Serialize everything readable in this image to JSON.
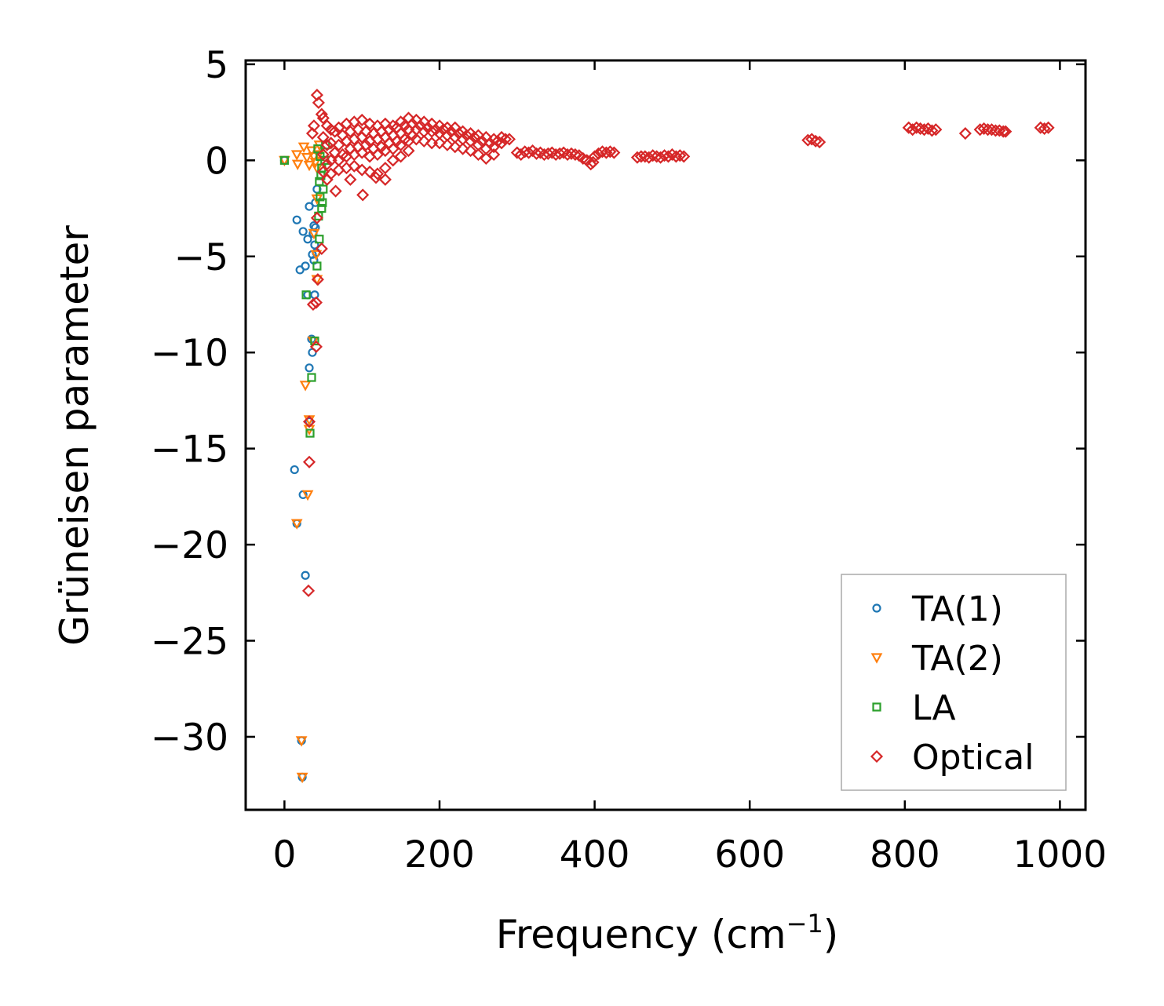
{
  "chart_data": {
    "type": "scatter",
    "title": "",
    "xlabel": "Frequency (cm",
    "xlabel_sup": "−1",
    "xlabel_end": ")",
    "ylabel": "Grüneisen parameter",
    "xlim": [
      -50,
      1033
    ],
    "ylim": [
      -33.8,
      5.2
    ],
    "xticks": [
      0,
      200,
      400,
      600,
      800,
      1000
    ],
    "xtick_labels": [
      "0",
      "200",
      "400",
      "600",
      "800",
      "1000"
    ],
    "yticks": [
      5,
      0,
      -5,
      -10,
      -15,
      -20,
      -25,
      -30
    ],
    "ytick_labels": [
      "5",
      "0",
      "−5",
      "−10",
      "−15",
      "−20",
      "−25",
      "−30"
    ],
    "grid": false,
    "legend_position": "bottom-right",
    "series": [
      {
        "name": "TA(1)",
        "marker": "circle",
        "color": "#1f77b4",
        "points": [
          [
            0,
            0
          ],
          [
            16,
            -3.1
          ],
          [
            24,
            -3.7
          ],
          [
            32,
            -2.4
          ],
          [
            30,
            -4.1
          ],
          [
            20,
            -5.7
          ],
          [
            27,
            -5.5
          ],
          [
            36,
            -4.9
          ],
          [
            38,
            -3.4
          ],
          [
            42,
            -1.5
          ],
          [
            40,
            -2.2
          ],
          [
            40,
            -3.5
          ],
          [
            38,
            -5.2
          ],
          [
            41,
            -4.8
          ],
          [
            37,
            -3.8
          ],
          [
            39,
            -4.4
          ],
          [
            30,
            -7.0
          ],
          [
            39,
            -7.0
          ],
          [
            35,
            -9.3
          ],
          [
            36,
            -10.0
          ],
          [
            32,
            -10.8
          ],
          [
            32,
            -13.6
          ],
          [
            13,
            -16.1
          ],
          [
            24,
            -17.4
          ],
          [
            16,
            -18.9
          ],
          [
            27,
            -21.6
          ],
          [
            22,
            -30.2
          ],
          [
            23,
            -32.1
          ]
        ]
      },
      {
        "name": "TA(2)",
        "marker": "triangle_down",
        "color": "#ff7f0e",
        "points": [
          [
            0,
            0
          ],
          [
            16,
            0.3
          ],
          [
            17,
            -0.2
          ],
          [
            25,
            0.7
          ],
          [
            29,
            0.15
          ],
          [
            32,
            -0.25
          ],
          [
            38,
            0.2
          ],
          [
            42,
            -0.4
          ],
          [
            45,
            0.8
          ],
          [
            35,
            0.5
          ],
          [
            40,
            -0.1
          ],
          [
            44,
            0.3
          ],
          [
            42,
            -2.0
          ],
          [
            38,
            -3.8
          ],
          [
            41,
            -4.9
          ],
          [
            42,
            -6.2
          ],
          [
            37,
            -9.4
          ],
          [
            27,
            -11.7
          ],
          [
            32,
            -13.5
          ],
          [
            32,
            -14.0
          ],
          [
            30,
            -17.4
          ],
          [
            16,
            -18.9
          ],
          [
            22,
            -30.2
          ],
          [
            23,
            -32.1
          ]
        ]
      },
      {
        "name": "LA",
        "marker": "square",
        "color": "#2ca02c",
        "points": [
          [
            0,
            0
          ],
          [
            43,
            0.6
          ],
          [
            46,
            0.2
          ],
          [
            48,
            -0.4
          ],
          [
            45,
            -1.1
          ],
          [
            46,
            -1.9
          ],
          [
            48,
            -2.5
          ],
          [
            44,
            -2.9
          ],
          [
            50,
            -1.5
          ],
          [
            52,
            0
          ],
          [
            53,
            0.8
          ],
          [
            47,
            -0.8
          ],
          [
            49,
            -2.2
          ],
          [
            45,
            -4.1
          ],
          [
            42,
            -5.5
          ],
          [
            28,
            -7.0
          ],
          [
            39,
            -9.4
          ],
          [
            35,
            -11.3
          ],
          [
            33,
            -14.2
          ]
        ]
      },
      {
        "name": "Optical",
        "marker": "diamond",
        "color": "#d62728",
        "points": [
          [
            42,
            3.4
          ],
          [
            44,
            3.0
          ],
          [
            48,
            2.4
          ],
          [
            38,
            1.8
          ],
          [
            36,
            1.4
          ],
          [
            42,
            -3.0
          ],
          [
            48,
            -4.6
          ],
          [
            43,
            -6.2
          ],
          [
            37,
            -7.5
          ],
          [
            41,
            -7.4
          ],
          [
            41,
            -9.7
          ],
          [
            32,
            -13.6
          ],
          [
            32,
            -15.7
          ],
          [
            31,
            -22.4
          ],
          [
            66,
            -1.6
          ],
          [
            85,
            -1.0
          ],
          [
            101,
            -1.8
          ],
          [
            118,
            -0.9
          ],
          [
            130,
            -1.0
          ],
          [
            50,
            2.2
          ],
          [
            50,
            1.2
          ],
          [
            50,
            0.3
          ],
          [
            50,
            -0.6
          ],
          [
            55,
            1.8
          ],
          [
            55,
            0.8
          ],
          [
            55,
            -0.2
          ],
          [
            55,
            -1.0
          ],
          [
            60,
            1.6
          ],
          [
            60,
            0.9
          ],
          [
            60,
            0
          ],
          [
            60,
            -0.7
          ],
          [
            65,
            1.5
          ],
          [
            65,
            0.4
          ],
          [
            70,
            1.7
          ],
          [
            70,
            0.8
          ],
          [
            70,
            0
          ],
          [
            70,
            -0.5
          ],
          [
            75,
            1.3
          ],
          [
            75,
            0.3
          ],
          [
            80,
            1.9
          ],
          [
            80,
            1.0
          ],
          [
            80,
            0.2
          ],
          [
            80,
            -0.4
          ],
          [
            85,
            1.5
          ],
          [
            85,
            0.6
          ],
          [
            90,
            2.0
          ],
          [
            90,
            1.1
          ],
          [
            90,
            0.3
          ],
          [
            90,
            -0.3
          ],
          [
            95,
            1.6
          ],
          [
            95,
            0.7
          ],
          [
            100,
            2.1
          ],
          [
            100,
            1.2
          ],
          [
            100,
            0.4
          ],
          [
            100,
            -0.5
          ],
          [
            105,
            1.5
          ],
          [
            105,
            0.8
          ],
          [
            110,
            1.9
          ],
          [
            110,
            1.0
          ],
          [
            110,
            0.2
          ],
          [
            110,
            -0.6
          ],
          [
            115,
            1.4
          ],
          [
            115,
            0.6
          ],
          [
            120,
            1.8
          ],
          [
            120,
            1.1
          ],
          [
            120,
            0.3
          ],
          [
            120,
            -0.7
          ],
          [
            125,
            1.5
          ],
          [
            125,
            0.7
          ],
          [
            130,
            1.9
          ],
          [
            130,
            1.2
          ],
          [
            130,
            0.5
          ],
          [
            130,
            -0.4
          ],
          [
            135,
            1.6
          ],
          [
            135,
            0.9
          ],
          [
            140,
            1.8
          ],
          [
            140,
            1.3
          ],
          [
            140,
            0.6
          ],
          [
            140,
            0
          ],
          [
            145,
            1.7
          ],
          [
            145,
            1.0
          ],
          [
            150,
            2.0
          ],
          [
            150,
            1.4
          ],
          [
            150,
            0.8
          ],
          [
            150,
            0.2
          ],
          [
            155,
            1.8
          ],
          [
            155,
            1.1
          ],
          [
            160,
            2.2
          ],
          [
            160,
            1.6
          ],
          [
            160,
            1.0
          ],
          [
            160,
            0.5
          ],
          [
            165,
            1.9
          ],
          [
            165,
            1.3
          ],
          [
            170,
            2.1
          ],
          [
            170,
            1.6
          ],
          [
            170,
            1.1
          ],
          [
            175,
            1.8
          ],
          [
            180,
            2.0
          ],
          [
            180,
            1.5
          ],
          [
            180,
            1.0
          ],
          [
            185,
            1.7
          ],
          [
            190,
            1.9
          ],
          [
            190,
            1.5
          ],
          [
            190,
            0.9
          ],
          [
            195,
            1.6
          ],
          [
            200,
            1.8
          ],
          [
            200,
            1.4
          ],
          [
            200,
            0.9
          ],
          [
            205,
            1.6
          ],
          [
            210,
            1.7
          ],
          [
            210,
            1.3
          ],
          [
            210,
            0.8
          ],
          [
            215,
            1.5
          ],
          [
            220,
            1.7
          ],
          [
            220,
            1.2
          ],
          [
            220,
            0.7
          ],
          [
            225,
            1.4
          ],
          [
            230,
            1.5
          ],
          [
            230,
            1.1
          ],
          [
            230,
            0.6
          ],
          [
            235,
            1.3
          ],
          [
            240,
            1.4
          ],
          [
            240,
            1.0
          ],
          [
            240,
            0.5
          ],
          [
            245,
            1.2
          ],
          [
            250,
            1.3
          ],
          [
            250,
            0.8
          ],
          [
            250,
            0.3
          ],
          [
            255,
            1.0
          ],
          [
            260,
            1.2
          ],
          [
            260,
            0.6
          ],
          [
            260,
            0.1
          ],
          [
            265,
            0.9
          ],
          [
            270,
            1.1
          ],
          [
            270,
            0.7
          ],
          [
            270,
            0.3
          ],
          [
            275,
            1.0
          ],
          [
            280,
            1.2
          ],
          [
            280,
            0.9
          ],
          [
            285,
            1.1
          ],
          [
            290,
            1.1
          ],
          [
            300,
            0.4
          ],
          [
            305,
            0.3
          ],
          [
            310,
            0.45
          ],
          [
            315,
            0.4
          ],
          [
            320,
            0.5
          ],
          [
            325,
            0.35
          ],
          [
            330,
            0.4
          ],
          [
            335,
            0.3
          ],
          [
            340,
            0.35
          ],
          [
            345,
            0.4
          ],
          [
            350,
            0.3
          ],
          [
            355,
            0.35
          ],
          [
            360,
            0.4
          ],
          [
            365,
            0.3
          ],
          [
            370,
            0.35
          ],
          [
            375,
            0.3
          ],
          [
            380,
            0.25
          ],
          [
            385,
            0.1
          ],
          [
            390,
            0
          ],
          [
            395,
            -0.2
          ],
          [
            398,
            -0.1
          ],
          [
            400,
            0.2
          ],
          [
            405,
            0.35
          ],
          [
            410,
            0.45
          ],
          [
            415,
            0.4
          ],
          [
            420,
            0.45
          ],
          [
            425,
            0.4
          ],
          [
            455,
            0.15
          ],
          [
            460,
            0.2
          ],
          [
            465,
            0.2
          ],
          [
            470,
            0.15
          ],
          [
            475,
            0.25
          ],
          [
            480,
            0.2
          ],
          [
            485,
            0.15
          ],
          [
            490,
            0.25
          ],
          [
            495,
            0.2
          ],
          [
            500,
            0.3
          ],
          [
            505,
            0.2
          ],
          [
            510,
            0.25
          ],
          [
            515,
            0.2
          ],
          [
            675,
            1.05
          ],
          [
            680,
            1.1
          ],
          [
            685,
            1.0
          ],
          [
            690,
            0.95
          ],
          [
            805,
            1.7
          ],
          [
            810,
            1.6
          ],
          [
            815,
            1.7
          ],
          [
            820,
            1.65
          ],
          [
            825,
            1.6
          ],
          [
            830,
            1.65
          ],
          [
            835,
            1.55
          ],
          [
            840,
            1.6
          ],
          [
            878,
            1.4
          ],
          [
            897,
            1.6
          ],
          [
            902,
            1.65
          ],
          [
            907,
            1.6
          ],
          [
            912,
            1.6
          ],
          [
            917,
            1.55
          ],
          [
            922,
            1.55
          ],
          [
            927,
            1.5
          ],
          [
            930,
            1.5
          ],
          [
            975,
            1.7
          ],
          [
            980,
            1.65
          ],
          [
            985,
            1.7
          ]
        ]
      }
    ]
  }
}
